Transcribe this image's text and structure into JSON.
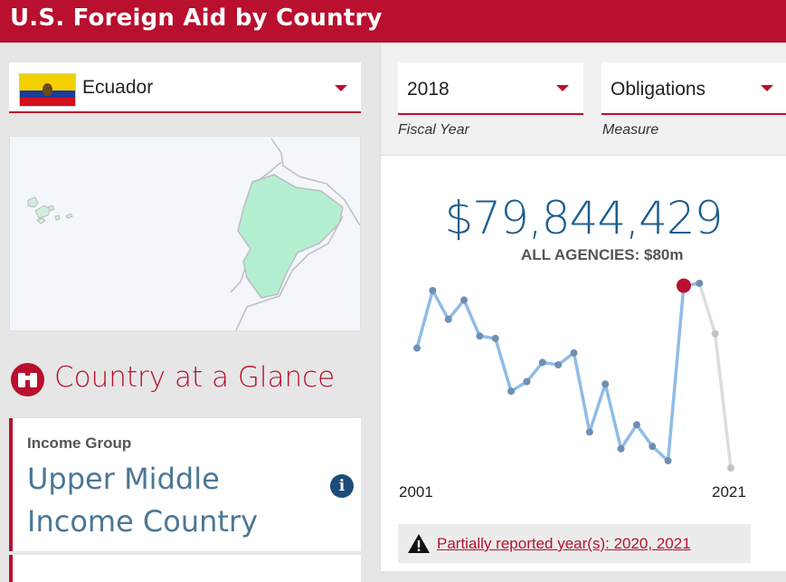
{
  "header": {
    "title": "U.S. Foreign Aid by Country"
  },
  "country": {
    "name": "Ecuador"
  },
  "glance": {
    "title": "Country at a Glance"
  },
  "income": {
    "label": "Income Group",
    "value_line1": "Upper Middle",
    "value_line2": "Income Country"
  },
  "controls": {
    "year": {
      "value": "2018",
      "label": "Fiscal Year"
    },
    "measure": {
      "value": "Obligations",
      "label": "Measure"
    }
  },
  "summary": {
    "amount": "$79,844,429",
    "agencies": "ALL AGENCIES: $80m"
  },
  "chart_data": {
    "type": "line",
    "x": [
      2001,
      2002,
      2003,
      2004,
      2005,
      2006,
      2007,
      2008,
      2009,
      2010,
      2011,
      2012,
      2013,
      2014,
      2015,
      2016,
      2017,
      2018,
      2019,
      2020,
      2021
    ],
    "series": [
      {
        "values": [
          54,
          78,
          66,
          74,
          59,
          58,
          36,
          40,
          48,
          47,
          52,
          19,
          39,
          12,
          22,
          13,
          7,
          80,
          81,
          60,
          4
        ]
      }
    ],
    "highlight_x": 2018,
    "partial_years": [
      2020,
      2021
    ],
    "x_tick_labels": [
      "2001",
      "2021"
    ],
    "colors": {
      "line": "#8fbce6",
      "point": "#6f8fb1",
      "highlight": "#b8102e",
      "partial_line": "#dddddd",
      "partial_point": "#c2c2c2"
    }
  },
  "warning": {
    "text": "Partially reported year(s): 2020, 2021"
  },
  "colors": {
    "brand": "#b8102e",
    "amount": "#1d5d8c",
    "income": "#4b7796"
  }
}
